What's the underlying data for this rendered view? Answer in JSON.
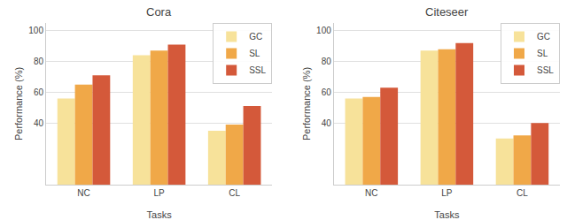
{
  "chart_data": [
    {
      "type": "bar",
      "title": "Cora",
      "xlabel": "Tasks",
      "ylabel": "Performance (%)",
      "categories": [
        "NC",
        "LP",
        "CL"
      ],
      "series": [
        {
          "name": "GC",
          "color": "#f7e29a",
          "values": [
            56,
            84,
            35
          ]
        },
        {
          "name": "SL",
          "color": "#f0a848",
          "values": [
            65,
            87,
            39
          ]
        },
        {
          "name": "SSL",
          "color": "#d4593a",
          "values": [
            71,
            91,
            51
          ]
        }
      ],
      "ylim": [
        0,
        105
      ],
      "yticks": [
        40,
        60,
        80,
        100
      ],
      "grid": true,
      "legend": "upper right"
    },
    {
      "type": "bar",
      "title": "Citeseer",
      "xlabel": "Tasks",
      "ylabel": "Performance (%)",
      "categories": [
        "NC",
        "LP",
        "CL"
      ],
      "series": [
        {
          "name": "GC",
          "color": "#f7e29a",
          "values": [
            56,
            87,
            30
          ]
        },
        {
          "name": "SL",
          "color": "#f0a848",
          "values": [
            57,
            88,
            32
          ]
        },
        {
          "name": "SSL",
          "color": "#d4593a",
          "values": [
            63,
            92,
            40
          ]
        }
      ],
      "ylim": [
        0,
        105
      ],
      "yticks": [
        40,
        60,
        80,
        100
      ],
      "grid": true,
      "legend": "upper right"
    }
  ]
}
